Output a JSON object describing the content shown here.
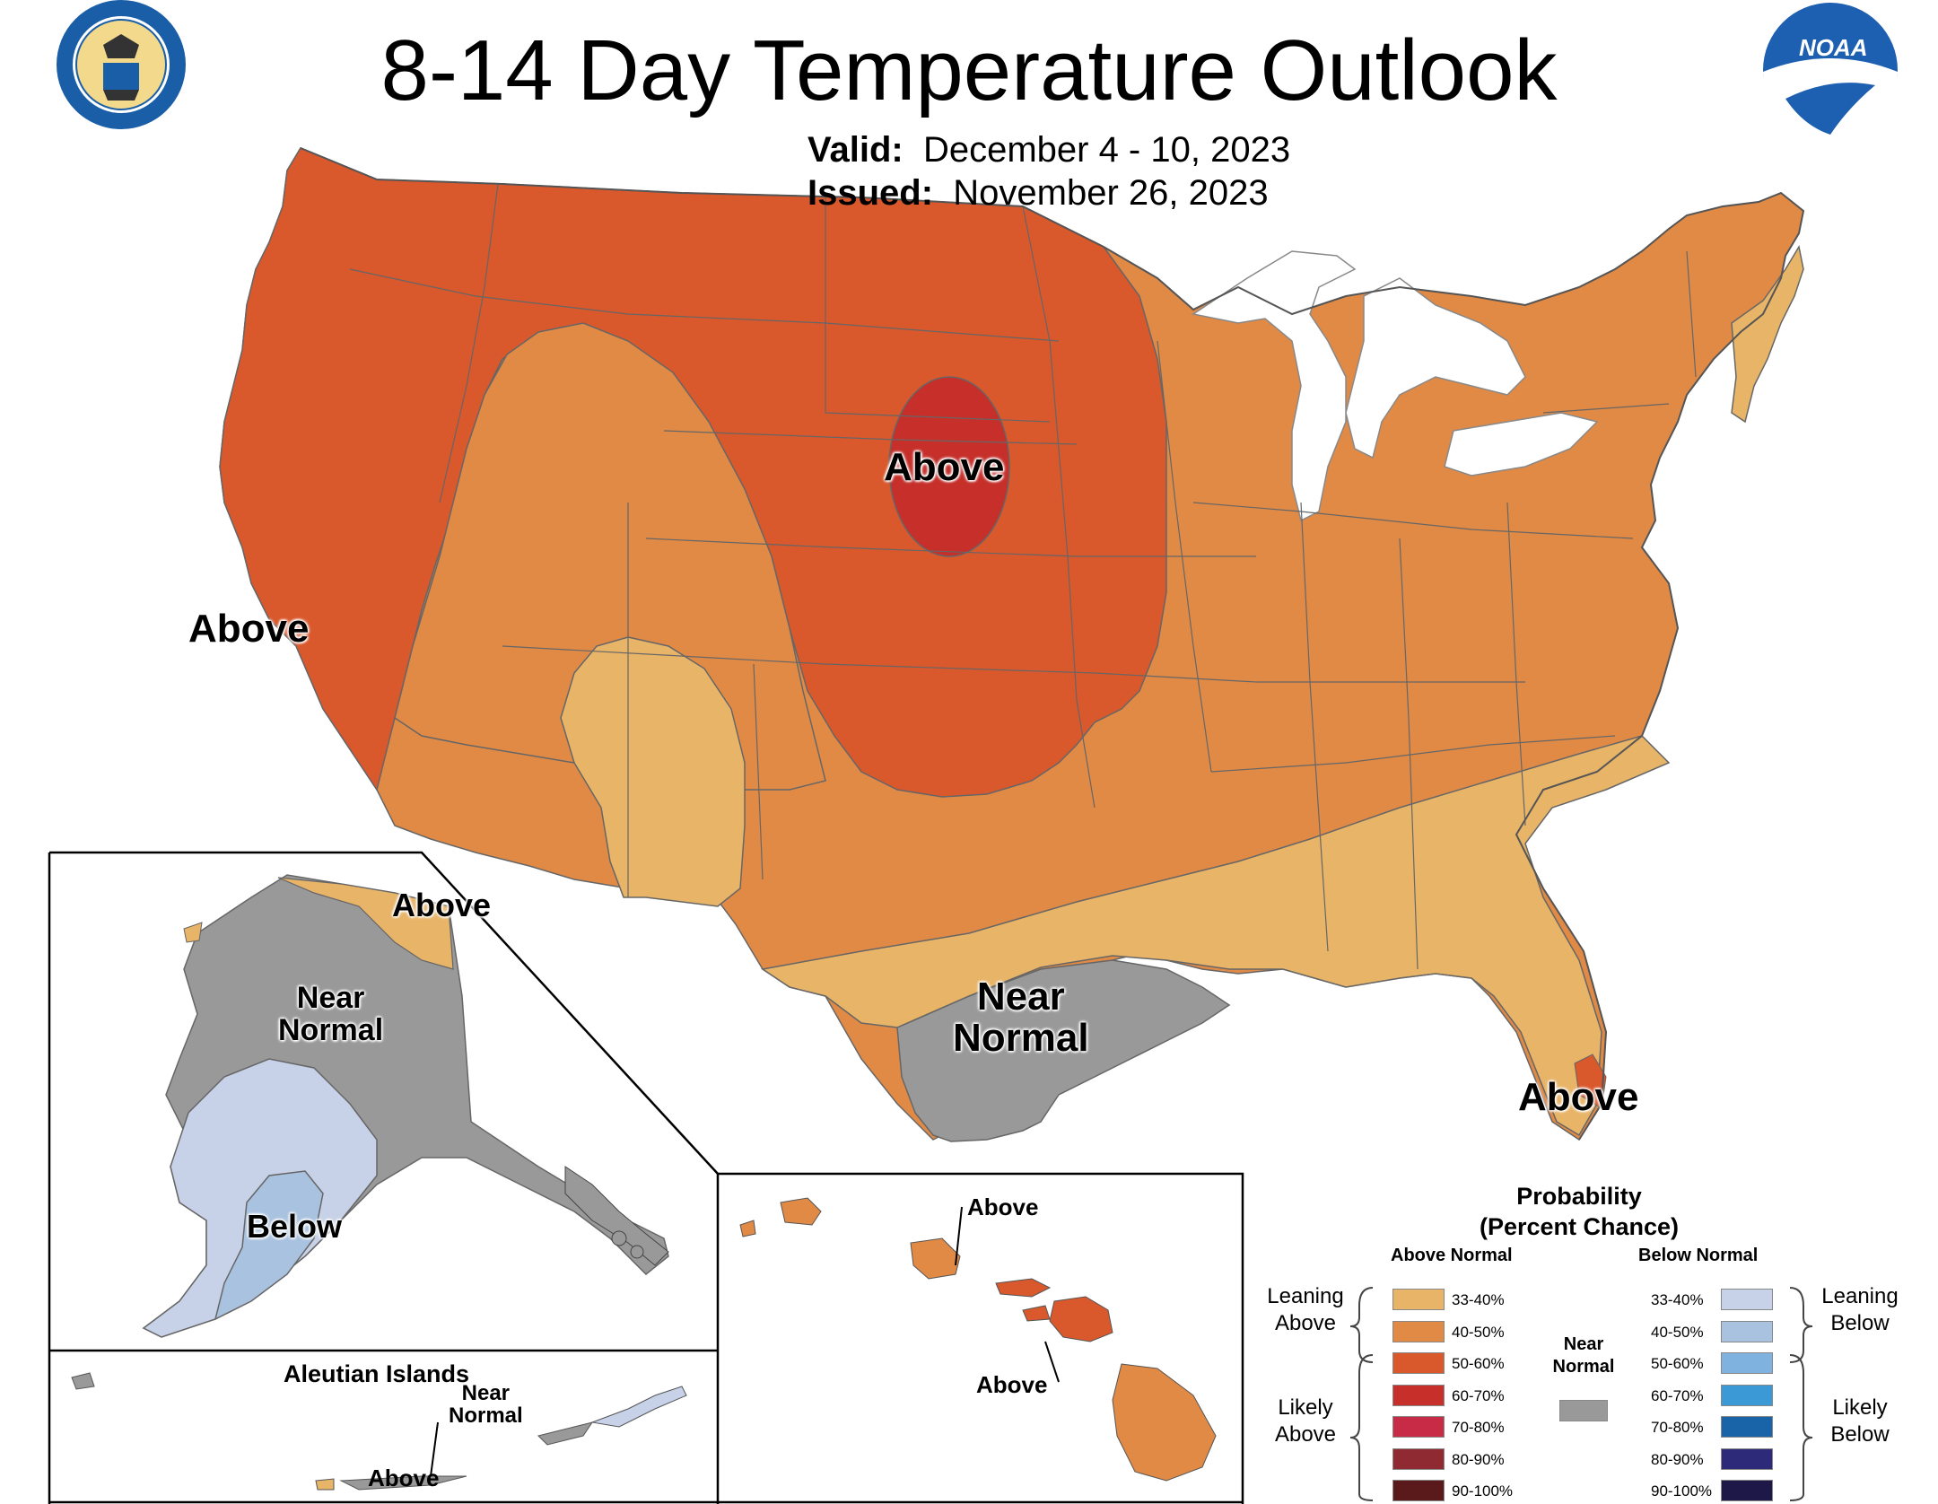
{
  "header": {
    "title": "8-14 Day Temperature Outlook",
    "valid_label": "Valid:",
    "valid_value": "December 4 - 10, 2023",
    "issued_label": "Issued:",
    "issued_value": "November 26, 2023"
  },
  "logos": {
    "commerce_seal": "department-of-commerce-seal",
    "noaa_logo_text": "NOAA"
  },
  "map_labels": {
    "west_coast": "Above",
    "central": "Above",
    "florida": "Above",
    "texas_line1": "Near",
    "texas_line2": "Normal"
  },
  "alaska": {
    "above": "Above",
    "near_line1": "Near",
    "near_line2": "Normal",
    "below": "Below"
  },
  "aleutian": {
    "title": "Aleutian Islands",
    "near_line1": "Near",
    "near_line2": "Normal",
    "above": "Above"
  },
  "hawaii": {
    "above_top": "Above",
    "above_bottom": "Above"
  },
  "legend": {
    "title_line1": "Probability",
    "title_line2": "(Percent Chance)",
    "above_header": "Above Normal",
    "below_header": "Below Normal",
    "near_line1": "Near",
    "near_line2": "Normal",
    "leaning_above_1": "Leaning",
    "leaning_above_2": "Above",
    "likely_above_1": "Likely",
    "likely_above_2": "Above",
    "leaning_below_1": "Leaning",
    "leaning_below_2": "Below",
    "likely_below_1": "Likely",
    "likely_below_2": "Below",
    "above_ranges": [
      "33-40%",
      "40-50%",
      "50-60%",
      "60-70%",
      "70-80%",
      "80-90%",
      "90-100%"
    ],
    "below_ranges": [
      "33-40%",
      "40-50%",
      "50-60%",
      "60-70%",
      "70-80%",
      "80-90%",
      "90-100%"
    ],
    "above_colors": [
      "#e8b468",
      "#e08a46",
      "#d9582c",
      "#c62f2a",
      "#c72b45",
      "#8f2a33",
      "#5a1a1c"
    ],
    "below_colors": [
      "#c7d2e8",
      "#a8c2e0",
      "#7fb2de",
      "#3b9ad6",
      "#1964a8",
      "#2e2a7a",
      "#1e1848"
    ],
    "near_color": "#999999"
  },
  "colors": {
    "above_33_40": "#e8b468",
    "above_40_50": "#e08a46",
    "above_50_60": "#d9582c",
    "above_60_70": "#c62f2a",
    "near_normal": "#999999",
    "below_33_40": "#c7d2e8",
    "below_40_50": "#a8c2e0"
  }
}
